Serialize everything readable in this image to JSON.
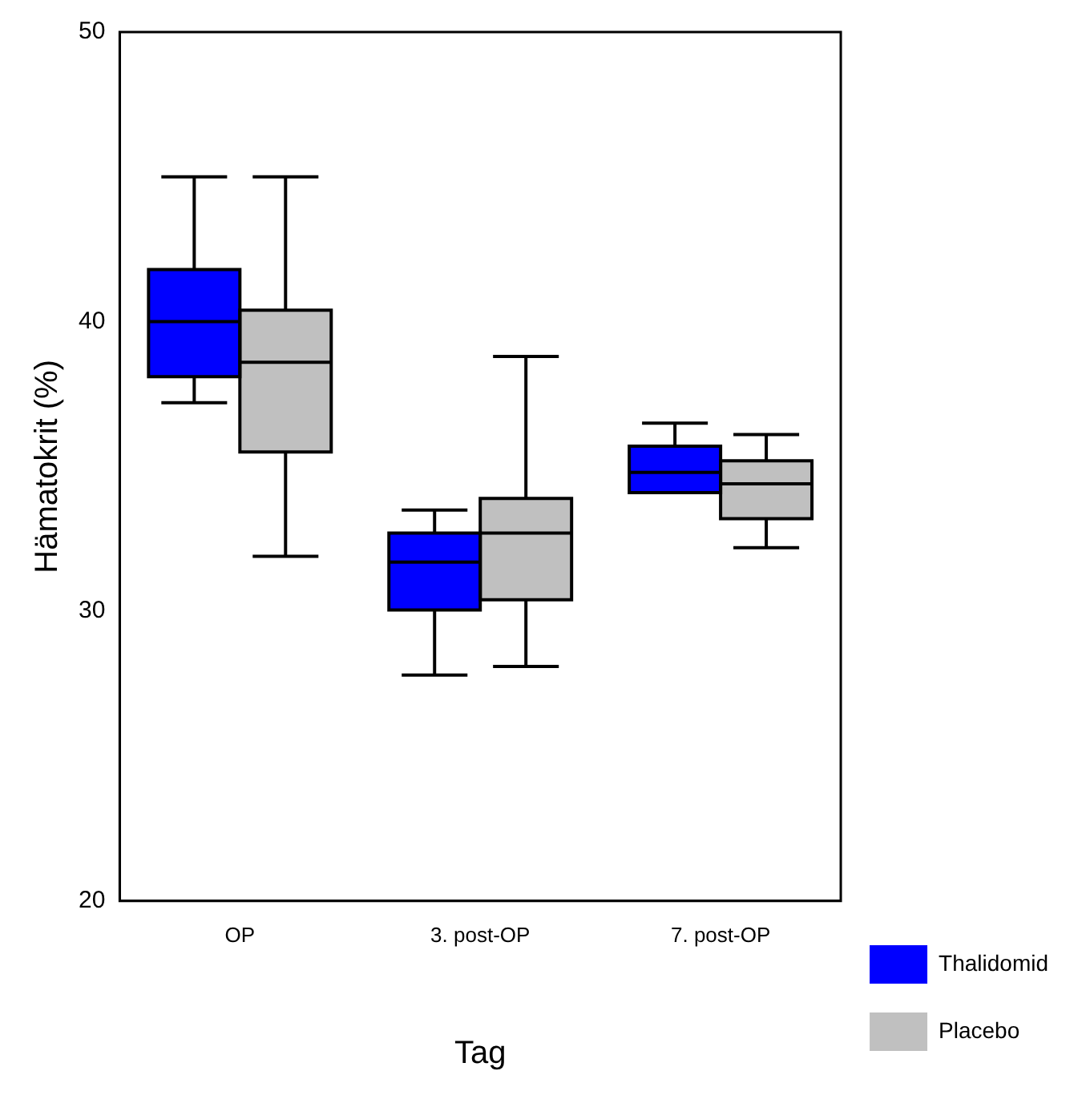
{
  "chart_data": {
    "type": "box",
    "xlabel": "Tag",
    "ylabel": "Hämatokrit (%)",
    "categories": [
      "OP",
      "3. post-OP",
      "7. post-OP"
    ],
    "ylim": [
      20,
      50
    ],
    "yticks": [
      20,
      30,
      40,
      50
    ],
    "grid": false,
    "legend": "bottom right",
    "series": [
      {
        "name": "Thalidomid",
        "color": "#0000ff",
        "boxes": [
          {
            "low": 37.2,
            "q1": 38.1,
            "median": 40.0,
            "q3": 41.8,
            "high": 45.0
          },
          {
            "low": 27.8,
            "q1": 30.05,
            "median": 31.7,
            "q3": 32.7,
            "high": 33.5
          },
          {
            "low": 34.1,
            "q1": 34.1,
            "median": 34.8,
            "q3": 35.7,
            "high": 36.5
          }
        ]
      },
      {
        "name": "Placebo",
        "color": "#c0c0c0",
        "boxes": [
          {
            "low": 31.9,
            "q1": 35.5,
            "median": 38.6,
            "q3": 40.4,
            "high": 45.0
          },
          {
            "low": 28.1,
            "q1": 30.4,
            "median": 32.7,
            "q3": 33.9,
            "high": 38.8
          },
          {
            "low": 32.2,
            "q1": 33.2,
            "median": 34.4,
            "q3": 35.2,
            "high": 36.1
          }
        ]
      }
    ]
  }
}
